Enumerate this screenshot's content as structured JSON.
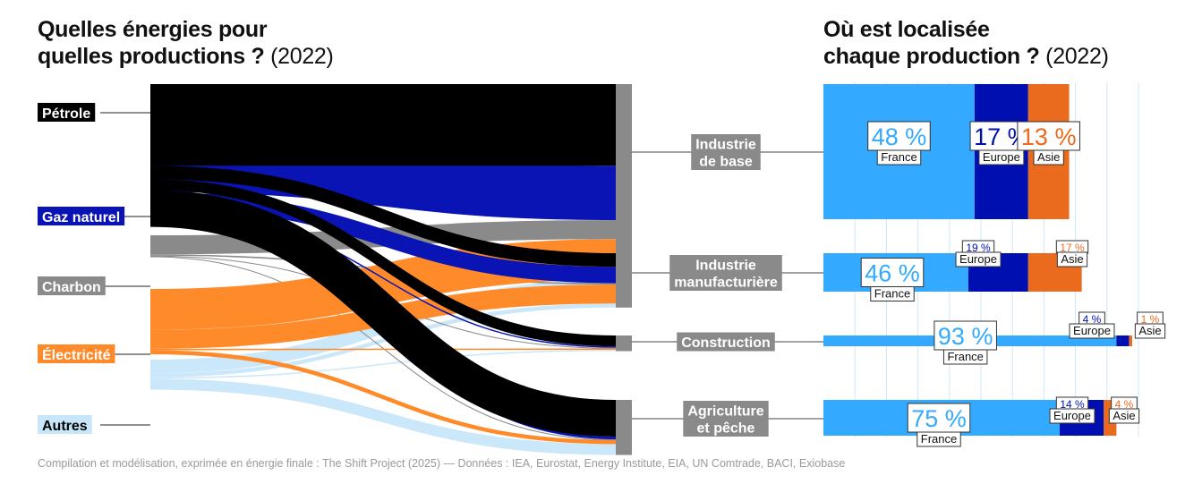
{
  "left_title": {
    "line1": "Quelles énergies pour",
    "line2": "quelles productions ?",
    "year": " (2022)"
  },
  "right_title": {
    "line1": "Où est localisée",
    "line2": "chaque production ?",
    "year": " (2022)"
  },
  "source": "Compilation et modélisation, exprimée en énergie finale : The Shift Project (2025) — Données : IEA, Eurostat, Energy Institute, EIA, UN Comtrade, BACI, Exiobase",
  "colors": {
    "petrole": "#000000",
    "gaz": "#0a14b4",
    "charbon": "#8a8a8a",
    "electricite": "#ff8a2a",
    "autres": "#c8e6fa",
    "france": "#33aaff",
    "europe": "#0010b0",
    "asie": "#ea6a1e",
    "node": "#8a8a8a"
  },
  "chart_data": [
    {
      "type": "sankey",
      "sources": [
        {
          "id": "petrole",
          "label": "Pétrole"
        },
        {
          "id": "gaz",
          "label": "Gaz naturel"
        },
        {
          "id": "charbon",
          "label": "Charbon"
        },
        {
          "id": "electricite",
          "label": "Électricité"
        },
        {
          "id": "autres",
          "label": "Autres"
        }
      ],
      "targets": [
        {
          "id": "base",
          "label": [
            "Industrie",
            "de base"
          ]
        },
        {
          "id": "manu",
          "label": [
            "Industrie",
            "manufacturière"
          ]
        },
        {
          "id": "constr",
          "label": [
            "Construction"
          ]
        },
        {
          "id": "agri",
          "label": [
            "Agriculture",
            "et pêche"
          ]
        }
      ],
      "flows": [
        {
          "source": "petrole",
          "target": "base",
          "value": 60
        },
        {
          "source": "petrole",
          "target": "manu",
          "value": 10
        },
        {
          "source": "petrole",
          "target": "constr",
          "value": 8
        },
        {
          "source": "petrole",
          "target": "agri",
          "value": 27
        },
        {
          "source": "gaz",
          "target": "base",
          "value": 40
        },
        {
          "source": "gaz",
          "target": "manu",
          "value": 12
        },
        {
          "source": "gaz",
          "target": "constr",
          "value": 1
        },
        {
          "source": "gaz",
          "target": "agri",
          "value": 2
        },
        {
          "source": "charbon",
          "target": "base",
          "value": 14
        },
        {
          "source": "charbon",
          "target": "manu",
          "value": 1
        },
        {
          "source": "charbon",
          "target": "constr",
          "value": 0.5
        },
        {
          "source": "charbon",
          "target": "agri",
          "value": 0.5
        },
        {
          "source": "electricite",
          "target": "base",
          "value": 30
        },
        {
          "source": "electricite",
          "target": "manu",
          "value": 14
        },
        {
          "source": "electricite",
          "target": "constr",
          "value": 1
        },
        {
          "source": "electricite",
          "target": "agri",
          "value": 3
        },
        {
          "source": "autres",
          "target": "base",
          "value": 10
        },
        {
          "source": "autres",
          "target": "manu",
          "value": 3
        },
        {
          "source": "autres",
          "target": "constr",
          "value": 1
        },
        {
          "source": "autres",
          "target": "agri",
          "value": 8
        }
      ]
    },
    {
      "type": "bar",
      "stacked": true,
      "orientation": "horizontal",
      "categories": [
        "Industrie de base",
        "Industrie manufacturière",
        "Construction",
        "Agriculture et pêche"
      ],
      "series": [
        {
          "name": "France",
          "values": [
            48,
            46,
            93,
            75
          ],
          "labels": [
            "48 %",
            "46 %",
            "93 %",
            "75 %"
          ]
        },
        {
          "name": "Europe",
          "values": [
            17,
            19,
            4,
            14
          ],
          "labels": [
            "17 %",
            "19 %",
            "4 %",
            "14 %"
          ]
        },
        {
          "name": "Asie",
          "values": [
            13,
            17,
            1,
            4
          ],
          "labels": [
            "13 %",
            "17 %",
            "1 %",
            "4 %"
          ]
        }
      ],
      "grid": true
    }
  ]
}
